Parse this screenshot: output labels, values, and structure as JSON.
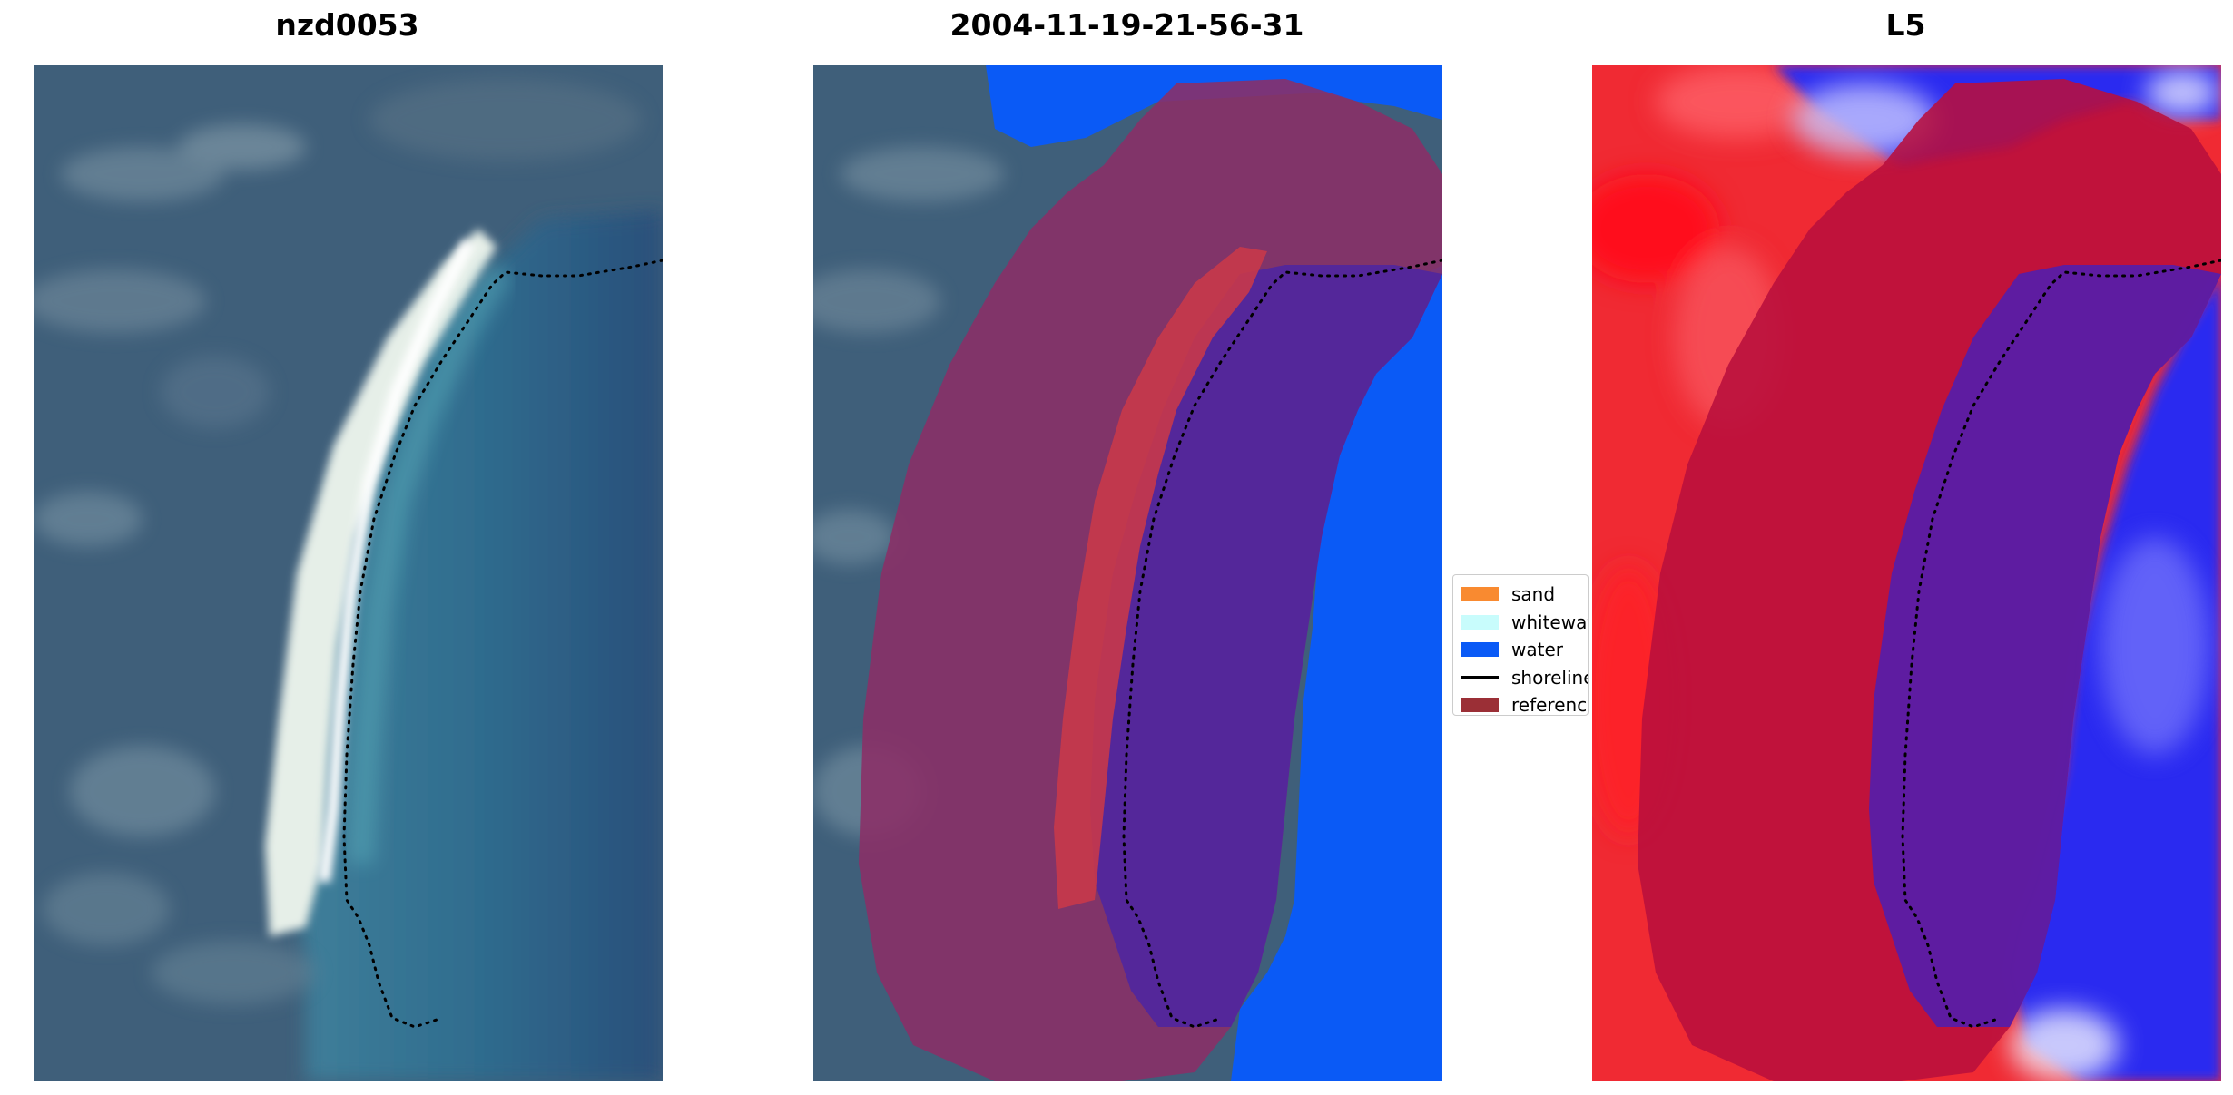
{
  "panels": [
    {
      "title": "nzd0053"
    },
    {
      "title": "2004-11-19-21-56-31"
    },
    {
      "title": "L5"
    }
  ],
  "legend": {
    "items": [
      {
        "label": "sand",
        "color": "#f98a30",
        "kind": "patch"
      },
      {
        "label": "whitewater",
        "color": "#c8fcfc",
        "kind": "patch"
      },
      {
        "label": "water",
        "color": "#0a5af6",
        "kind": "patch"
      },
      {
        "label": "shoreline",
        "color": "#000000",
        "kind": "line"
      },
      {
        "label": "reference",
        "color": "#9b2f36",
        "kind": "patch"
      }
    ]
  },
  "colors": {
    "water_mask": "#0a5af6",
    "buffer": "#8b2f66",
    "reference_band": "#c8384a",
    "ocean": "#2c6e93",
    "land": "#41617a",
    "beach": "#e8efe9",
    "index_positive": "#f0262f",
    "index_negative": "#1e1ee8"
  }
}
